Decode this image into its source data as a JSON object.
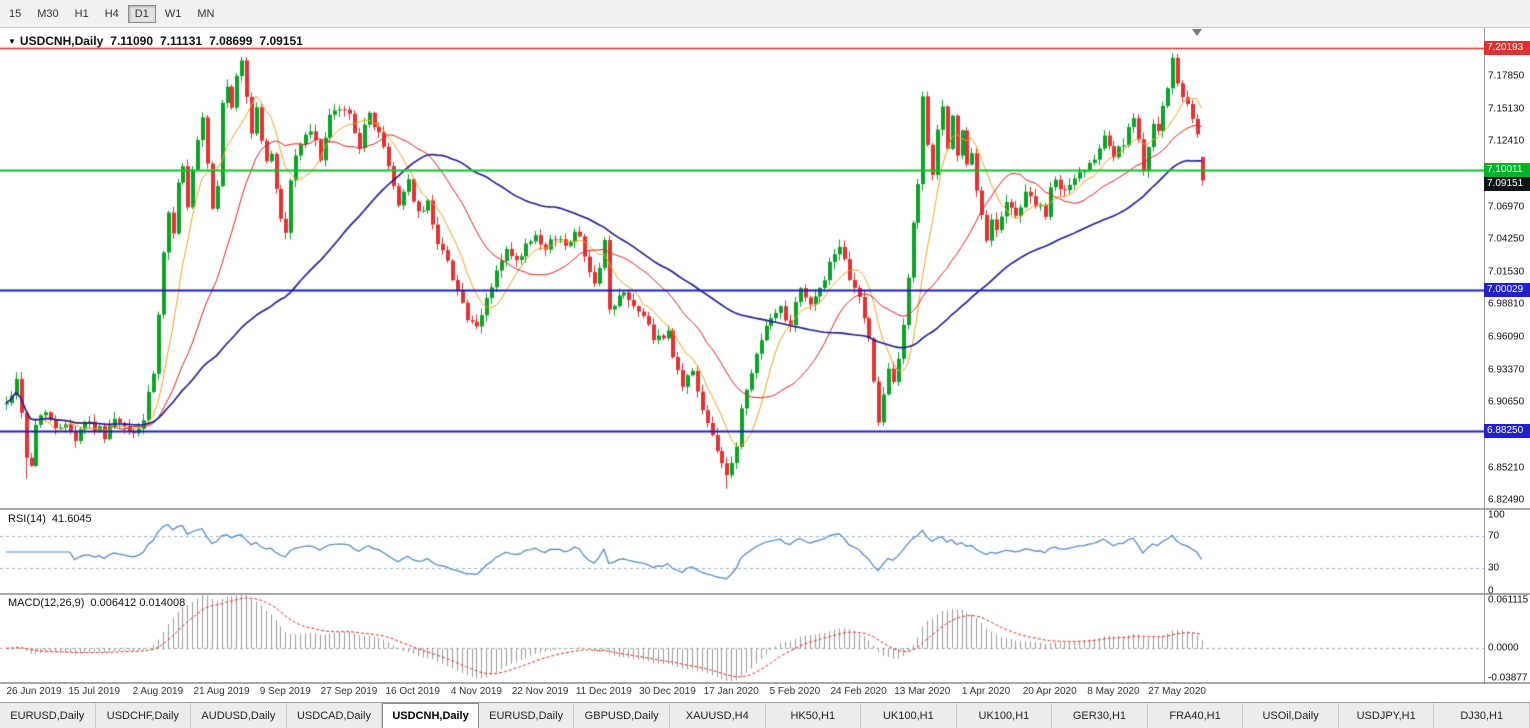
{
  "toolbar": {
    "timeframes": [
      {
        "label": "15",
        "active": false
      },
      {
        "label": "M30",
        "active": false
      },
      {
        "label": "H1",
        "active": false
      },
      {
        "label": "H4",
        "active": false
      },
      {
        "label": "D1",
        "active": true
      },
      {
        "label": "W1",
        "active": false
      },
      {
        "label": "MN",
        "active": false
      }
    ]
  },
  "chart": {
    "title_marker": "▼",
    "symbol_title": "USDCNH,Daily",
    "ohlc": {
      "open": "7.11090",
      "high": "7.11131",
      "low": "7.08699",
      "close": "7.09151"
    },
    "price_axis_ticks": [
      "7.17850",
      "7.15130",
      "7.12410",
      "7.06970",
      "7.04250",
      "7.01530",
      "6.98810",
      "6.96090",
      "6.93370",
      "6.90650",
      "6.85210",
      "6.82490"
    ],
    "hlines": [
      {
        "price": 7.20193,
        "label": "7.20193",
        "color": "#e03030",
        "badge_bg": "#e03030",
        "width": 1.4
      },
      {
        "price": 7.10011,
        "label": "7.10011",
        "color": "#00cc22",
        "badge_bg": "#00b526",
        "width": 2
      },
      {
        "price": 7.00029,
        "label": "7.00029",
        "color": "#1a1acc",
        "badge_bg": "#2020cc",
        "width": 2
      },
      {
        "price": 6.8825,
        "label": "6.88250",
        "color": "#1a1acc",
        "badge_bg": "#2020cc",
        "width": 2
      }
    ],
    "current_price": {
      "price": 7.09151,
      "label": "7.09151",
      "badge_bg": "#11131a"
    },
    "dates": [
      "26 Jun 2019",
      "15 Jul 2019",
      "2 Aug 2019",
      "21 Aug 2019",
      "9 Sep 2019",
      "27 Sep 2019",
      "16 Oct 2019",
      "4 Nov 2019",
      "22 Nov 2019",
      "11 Dec 2019",
      "30 Dec 2019",
      "17 Jan 2020",
      "5 Feb 2020",
      "24 Feb 2020",
      "13 Mar 2020",
      "1 Apr 2020",
      "20 Apr 2020",
      "8 May 2020",
      "27 May 2020"
    ]
  },
  "rsi_panel": {
    "name": "RSI(14)",
    "value": "41.6045",
    "ticks": [
      {
        "label": "100",
        "v": 100
      },
      {
        "label": "70",
        "v": 70
      },
      {
        "label": "30",
        "v": 30
      },
      {
        "label": "0",
        "v": 0
      }
    ],
    "levels": [
      70,
      30
    ],
    "line_color": "#4a86c8"
  },
  "macd_panel": {
    "name": "MACD(12,26,9)",
    "values": "0.006412 0.014008",
    "ticks": [
      {
        "label": "0.061115",
        "v": 0.0575
      },
      {
        "label": "0.0000",
        "v": 0
      },
      {
        "label": "-0.03877",
        "v": -0.0355
      }
    ],
    "scale": {
      "max": 0.0611,
      "min": -0.0388
    },
    "hist_color": "#9a9a9a",
    "signal_color": "#e03030"
  },
  "tabs": [
    {
      "label": "EURUSD,Daily",
      "active": false
    },
    {
      "label": "USDCHF,Daily",
      "active": false
    },
    {
      "label": "AUDUSD,Daily",
      "active": false
    },
    {
      "label": "USDCAD,Daily",
      "active": false
    },
    {
      "label": "USDCNH,Daily",
      "active": true
    },
    {
      "label": "EURUSD,Daily",
      "active": false
    },
    {
      "label": "GBPUSD,Daily",
      "active": false
    },
    {
      "label": "XAUUSD,H4",
      "active": false
    },
    {
      "label": "HK50,H1",
      "active": false
    },
    {
      "label": "UK100,H1",
      "active": false
    },
    {
      "label": "UK100,H1",
      "active": false
    },
    {
      "label": "GER30,H1",
      "active": false
    },
    {
      "label": "FRA40,H1",
      "active": false
    },
    {
      "label": "USOil,Daily",
      "active": false
    },
    {
      "label": "USDJPY,H1",
      "active": false
    },
    {
      "label": "DJ30,H1",
      "active": false
    }
  ],
  "chart_data": {
    "type": "candlestick",
    "symbol": "USDCNH",
    "period": "Daily",
    "bar_count": 245,
    "first_label_bar": 5,
    "label_bar_step": 13,
    "price_range": {
      "max": 7.2185,
      "min": 6.8185
    },
    "up_color": "#0fa02a",
    "down_color": "#de3434",
    "ma": [
      {
        "period": 8,
        "color": "#efa420",
        "width": 1
      },
      {
        "period": 21,
        "color": "#e02020",
        "width": 1
      },
      {
        "period": 55,
        "color": "#1c1c96",
        "width": 1.6
      }
    ],
    "indicators": {
      "rsi_period": 14,
      "macd": [
        12,
        26,
        9
      ]
    },
    "last_candle": {
      "open": 7.1109,
      "high": 7.11131,
      "low": 7.08699,
      "close": 7.09151
    },
    "wick_overrides": [
      [
        4,
        "low",
        6.843
      ],
      [
        147,
        "low",
        6.8345
      ],
      [
        238,
        "high",
        7.1975
      ]
    ],
    "anchors": [
      [
        0,
        6.905
      ],
      [
        2,
        6.925
      ],
      [
        3,
        6.9
      ],
      [
        4,
        6.862
      ],
      [
        5,
        6.852
      ],
      [
        6,
        6.888
      ],
      [
        8,
        6.902
      ],
      [
        10,
        6.882
      ],
      [
        12,
        6.892
      ],
      [
        14,
        6.876
      ],
      [
        16,
        6.892
      ],
      [
        18,
        6.886
      ],
      [
        20,
        6.88
      ],
      [
        22,
        6.891
      ],
      [
        24,
        6.884
      ],
      [
        26,
        6.88
      ],
      [
        28,
        6.892
      ],
      [
        30,
        6.93
      ],
      [
        31,
        6.978
      ],
      [
        32,
        7.028
      ],
      [
        33,
        7.062
      ],
      [
        34,
        7.05
      ],
      [
        35,
        7.092
      ],
      [
        36,
        7.102
      ],
      [
        37,
        7.068
      ],
      [
        38,
        7.098
      ],
      [
        39,
        7.122
      ],
      [
        40,
        7.142
      ],
      [
        41,
        7.102
      ],
      [
        42,
        7.068
      ],
      [
        43,
        7.085
      ],
      [
        44,
        7.158
      ],
      [
        45,
        7.172
      ],
      [
        46,
        7.148
      ],
      [
        47,
        7.178
      ],
      [
        48,
        7.192
      ],
      [
        49,
        7.162
      ],
      [
        50,
        7.132
      ],
      [
        51,
        7.152
      ],
      [
        52,
        7.126
      ],
      [
        53,
        7.106
      ],
      [
        54,
        7.112
      ],
      [
        55,
        7.086
      ],
      [
        56,
        7.062
      ],
      [
        57,
        7.046
      ],
      [
        58,
        7.092
      ],
      [
        59,
        7.112
      ],
      [
        60,
        7.122
      ],
      [
        62,
        7.132
      ],
      [
        64,
        7.112
      ],
      [
        66,
        7.142
      ],
      [
        68,
        7.152
      ],
      [
        70,
        7.146
      ],
      [
        72,
        7.122
      ],
      [
        74,
        7.146
      ],
      [
        76,
        7.132
      ],
      [
        78,
        7.102
      ],
      [
        80,
        7.072
      ],
      [
        82,
        7.092
      ],
      [
        84,
        7.062
      ],
      [
        86,
        7.072
      ],
      [
        88,
        7.042
      ],
      [
        90,
        7.022
      ],
      [
        92,
        7.002
      ],
      [
        94,
        6.976
      ],
      [
        96,
        6.966
      ],
      [
        98,
        6.992
      ],
      [
        100,
        7.016
      ],
      [
        102,
        7.032
      ],
      [
        104,
        7.022
      ],
      [
        106,
        7.036
      ],
      [
        108,
        7.042
      ],
      [
        110,
        7.032
      ],
      [
        112,
        7.046
      ],
      [
        114,
        7.036
      ],
      [
        116,
        7.052
      ],
      [
        118,
        7.032
      ],
      [
        120,
        7.002
      ],
      [
        122,
        7.042
      ],
      [
        123,
        6.982
      ],
      [
        124,
        6.986
      ],
      [
        126,
        7.002
      ],
      [
        128,
        6.986
      ],
      [
        130,
        6.976
      ],
      [
        132,
        6.962
      ],
      [
        134,
        6.956
      ],
      [
        135,
        6.966
      ],
      [
        136,
        6.942
      ],
      [
        138,
        6.922
      ],
      [
        140,
        6.932
      ],
      [
        142,
        6.902
      ],
      [
        144,
        6.882
      ],
      [
        146,
        6.856
      ],
      [
        147,
        6.846
      ],
      [
        148,
        6.852
      ],
      [
        149,
        6.872
      ],
      [
        150,
        6.902
      ],
      [
        152,
        6.932
      ],
      [
        154,
        6.962
      ],
      [
        156,
        6.976
      ],
      [
        158,
        6.986
      ],
      [
        160,
        6.972
      ],
      [
        161,
        6.992
      ],
      [
        162,
        7.002
      ],
      [
        164,
        6.986
      ],
      [
        166,
        7.002
      ],
      [
        168,
        7.022
      ],
      [
        170,
        7.032
      ],
      [
        172,
        7.012
      ],
      [
        174,
        6.992
      ],
      [
        176,
        6.962
      ],
      [
        177,
        6.922
      ],
      [
        178,
        6.892
      ],
      [
        179,
        6.912
      ],
      [
        180,
        6.932
      ],
      [
        181,
        6.922
      ],
      [
        182,
        6.942
      ],
      [
        183,
        6.972
      ],
      [
        184,
        7.012
      ],
      [
        185,
        7.052
      ],
      [
        186,
        7.092
      ],
      [
        187,
        7.162
      ],
      [
        188,
        7.122
      ],
      [
        189,
        7.092
      ],
      [
        190,
        7.132
      ],
      [
        191,
        7.152
      ],
      [
        192,
        7.122
      ],
      [
        193,
        7.142
      ],
      [
        194,
        7.112
      ],
      [
        195,
        7.132
      ],
      [
        196,
        7.102
      ],
      [
        197,
        7.112
      ],
      [
        198,
        7.082
      ],
      [
        199,
        7.062
      ],
      [
        200,
        7.042
      ],
      [
        201,
        7.062
      ],
      [
        202,
        7.052
      ],
      [
        204,
        7.072
      ],
      [
        206,
        7.062
      ],
      [
        208,
        7.082
      ],
      [
        210,
        7.072
      ],
      [
        212,
        7.062
      ],
      [
        213,
        7.082
      ],
      [
        214,
        7.092
      ],
      [
        216,
        7.082
      ],
      [
        218,
        7.092
      ],
      [
        220,
        7.102
      ],
      [
        222,
        7.112
      ],
      [
        224,
        7.132
      ],
      [
        226,
        7.112
      ],
      [
        228,
        7.122
      ],
      [
        230,
        7.142
      ],
      [
        231,
        7.122
      ],
      [
        232,
        7.102
      ],
      [
        233,
        7.122
      ],
      [
        234,
        7.142
      ],
      [
        235,
        7.132
      ],
      [
        236,
        7.152
      ],
      [
        237,
        7.165
      ],
      [
        238,
        7.19
      ],
      [
        239,
        7.172
      ],
      [
        240,
        7.162
      ],
      [
        241,
        7.152
      ],
      [
        242,
        7.142
      ],
      [
        243,
        7.128
      ],
      [
        244,
        7.0915
      ]
    ]
  }
}
